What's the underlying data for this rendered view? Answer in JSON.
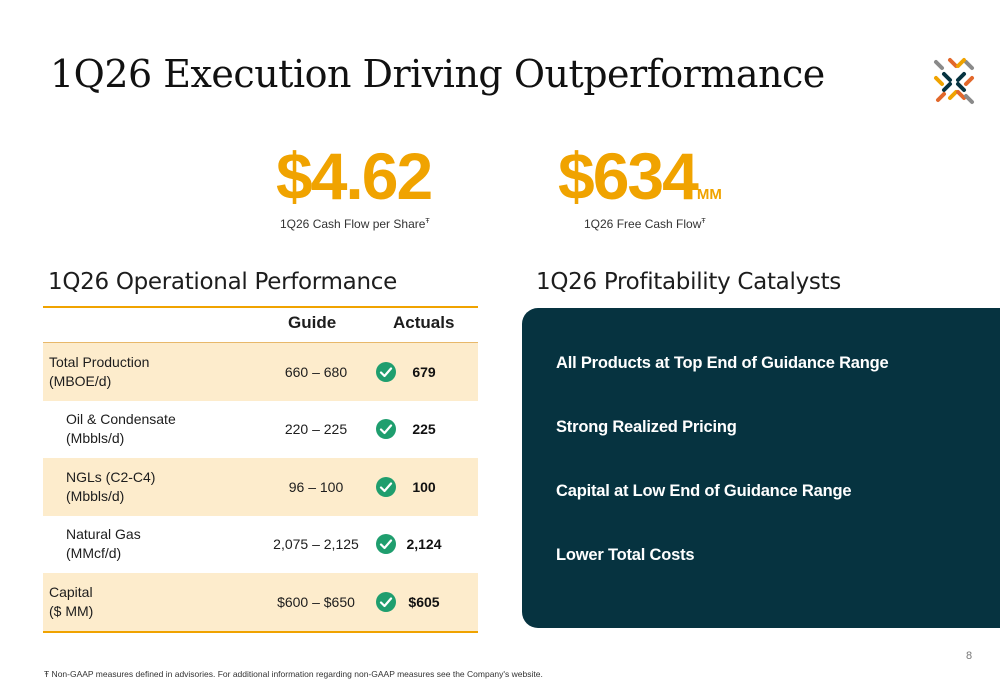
{
  "title": "1Q26 Execution Driving Outperformance",
  "logo": {
    "icon": "company-logo-icon",
    "colors": [
      "#f0a300",
      "#e2682b",
      "#063340",
      "#8a8a8a"
    ]
  },
  "metrics": [
    {
      "value": "$4.62",
      "unit": "",
      "label": "1Q26 Cash Flow per Share",
      "marker": "Ŧ"
    },
    {
      "value": "$634",
      "unit": "MM",
      "label": "1Q26 Free Cash Flow",
      "marker": "Ŧ"
    }
  ],
  "operational": {
    "title": "1Q26 Operational Performance",
    "headers": {
      "guide": "Guide",
      "actuals": "Actuals"
    },
    "rows": [
      {
        "label_line1": "Total Production",
        "label_line2": "(MBOE/d)",
        "guide": "660 – 680",
        "actual": "679"
      },
      {
        "label_line1": "Oil & Condensate",
        "label_line2": "(Mbbls/d)",
        "guide": "220 – 225",
        "actual": "225"
      },
      {
        "label_line1": "NGLs (C2-C4)",
        "label_line2": "(Mbbls/d)",
        "guide": "96 – 100",
        "actual": "100"
      },
      {
        "label_line1": "Natural Gas",
        "label_line2": "(MMcf/d)",
        "guide": "2,075 – 2,125",
        "actual": "2,124"
      },
      {
        "label_line1": "Capital",
        "label_line2": "($ MM)",
        "guide": "$600 – $650",
        "actual": "$605"
      }
    ],
    "check_icon": "check-circle-icon"
  },
  "catalysts": {
    "title": "1Q26 Profitability Catalysts",
    "items": [
      "All Products at Top End of Guidance Range",
      "Strong Realized Pricing",
      "Capital at Low End of Guidance Range",
      "Lower Total Costs"
    ]
  },
  "page_number": "8",
  "footnote": "Ŧ Non-GAAP measures defined in advisories. For additional information regarding non-GAAP measures see the Company's website.",
  "colors": {
    "accent": "#f0a300",
    "dark_panel": "#063340",
    "shade_row": "#fdeccc",
    "check": "#1f9e6e"
  }
}
